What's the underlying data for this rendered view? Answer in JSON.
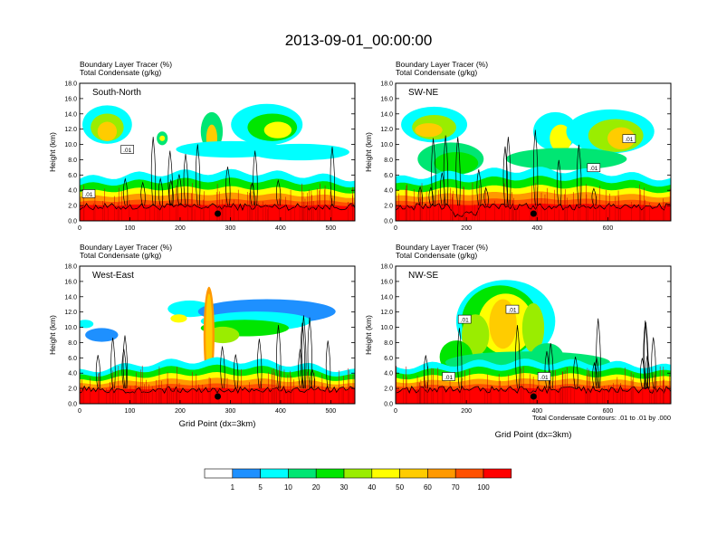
{
  "chart_data": {
    "type": "heatmap",
    "title": "2013-09-01_00:00:00",
    "panels": [
      {
        "name": "South-North",
        "subtitle_line1": "Boundary Layer Tracer   (%)",
        "subtitle_line2": "Total Condensate   (g/kg)",
        "ylabel": "Height (km)",
        "xlabel": "",
        "xlim": [
          0,
          548
        ],
        "ylim": [
          0,
          18
        ],
        "xticks": [
          "0",
          "100",
          "200",
          "300",
          "400",
          "500"
        ],
        "xtick_values": [
          0,
          100,
          200,
          300,
          400,
          500
        ],
        "yticks": [
          "0.0",
          "2.0",
          "4.0",
          "6.0",
          "8.0",
          "10.0",
          "12.0",
          "14.0",
          "16.0",
          "18.0"
        ],
        "marker_x": 275,
        "contour_labels": [
          {
            "text": ".01",
            "x": 18,
            "y": 3.5
          },
          {
            "text": ".01",
            "x": 95,
            "y": 9.3
          }
        ]
      },
      {
        "name": "SW-NE",
        "subtitle_line1": "Boundary Layer Tracer   (%)",
        "subtitle_line2": "Total Condensate   (g/kg)",
        "ylabel": "Height (km)",
        "xlabel": "",
        "xlim": [
          0,
          778
        ],
        "ylim": [
          0,
          18
        ],
        "xticks": [
          "0",
          "200",
          "400",
          "600"
        ],
        "xtick_values": [
          0,
          200,
          400,
          600
        ],
        "yticks": [
          "0.0",
          "2.0",
          "4.0",
          "6.0",
          "8.0",
          "10.0",
          "12.0",
          "14.0",
          "16.0",
          "18.0"
        ],
        "marker_x": 390,
        "contour_labels": [
          {
            "text": ".01",
            "x": 560,
            "y": 6.9
          },
          {
            "text": ".01",
            "x": 660,
            "y": 10.7
          }
        ]
      },
      {
        "name": "West-East",
        "subtitle_line1": "Boundary Layer Tracer   (%)",
        "subtitle_line2": "Total Condensate   (g/kg)",
        "ylabel": "Height (km)",
        "xlabel": "Grid Point (dx=3km)",
        "xlim": [
          0,
          548
        ],
        "ylim": [
          0,
          18
        ],
        "xticks": [
          "0",
          "100",
          "200",
          "300",
          "400",
          "500"
        ],
        "xtick_values": [
          0,
          100,
          200,
          300,
          400,
          500
        ],
        "yticks": [
          "0.0",
          "2.0",
          "4.0",
          "6.0",
          "8.0",
          "10.0",
          "12.0",
          "14.0",
          "16.0",
          "18.0"
        ],
        "marker_x": 275,
        "contour_labels": []
      },
      {
        "name": "NW-SE",
        "subtitle_line1": "Boundary Layer Tracer   (%)",
        "subtitle_line2": "Total Condensate   (g/kg)",
        "ylabel": "Height (km)",
        "xlabel": "Grid Point (dx=3km)",
        "xlim": [
          0,
          778
        ],
        "ylim": [
          0,
          18
        ],
        "xticks": [
          "0",
          "200",
          "400",
          "600"
        ],
        "xtick_values": [
          0,
          200,
          400,
          600
        ],
        "yticks": [
          "0.0",
          "2.0",
          "4.0",
          "6.0",
          "8.0",
          "10.0",
          "12.0",
          "14.0",
          "16.0",
          "18.0"
        ],
        "marker_x": 390,
        "contour_labels": [
          {
            "text": ".01",
            "x": 195,
            "y": 11.0
          },
          {
            "text": ".01",
            "x": 330,
            "y": 12.3
          },
          {
            "text": ".01",
            "x": 150,
            "y": 3.5
          },
          {
            "text": ".01",
            "x": 420,
            "y": 3.5
          }
        ]
      }
    ],
    "contour_note": "Total Condensate Contours: .01 to .01 by .000",
    "colorbar": {
      "labels": [
        "1",
        "5",
        "10",
        "20",
        "30",
        "40",
        "50",
        "60",
        "70",
        "100"
      ],
      "colors": [
        "#ffffff",
        "#1e90ff",
        "#00ffff",
        "#00e673",
        "#00e600",
        "#9aed00",
        "#ffff00",
        "#ffcc00",
        "#ff9900",
        "#ff5000",
        "#ff0000"
      ]
    }
  }
}
